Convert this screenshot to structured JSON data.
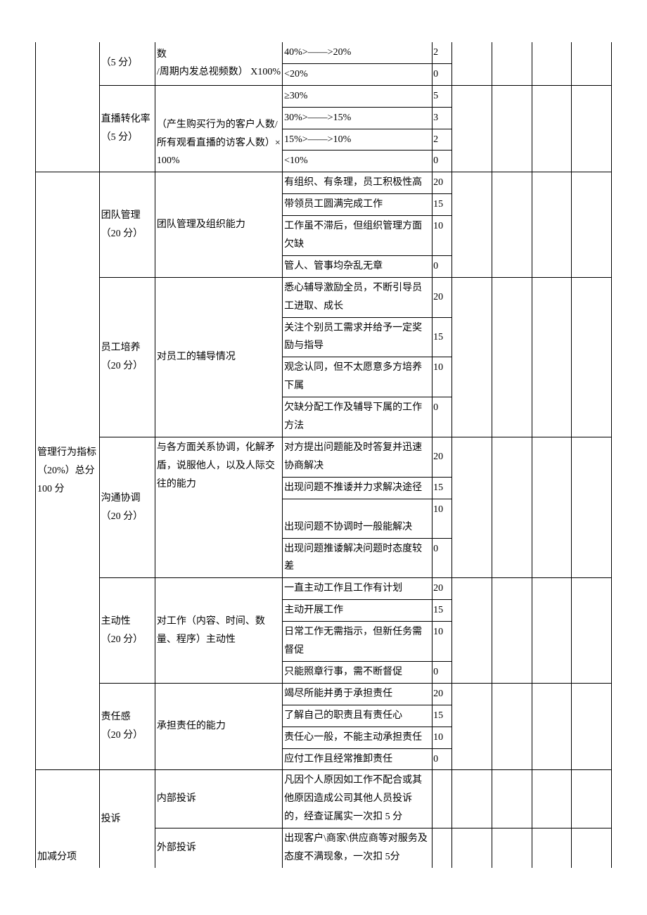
{
  "cols": {
    "c1_width": 80,
    "c2_width": 70,
    "c3_width": 160,
    "c4_width": 180,
    "c5_width": 25,
    "c6_width": 55,
    "c7_width": 55,
    "c8_width": 55,
    "c9_width": 55
  },
  "r1": {
    "metric_label": "（5 分）",
    "formula": "数\n/周期内发总视频数） X100%",
    "level1": "40%>——>20%",
    "score1": "2",
    "level2": "<20%",
    "score2": "0"
  },
  "r2": {
    "metric_label": "直播转化率\n（5 分）",
    "formula": "（产生购买行为的客户人数/所有观看直播的访客人数）×100%",
    "level1": "≥30%",
    "score1": "5",
    "level2": "30%>——>15%",
    "score2": "3",
    "level3": "15%>——>10%",
    "score3": "2",
    "level4": "<10%",
    "score4": "0"
  },
  "section2": {
    "title": "管理行为指标\n（20%）总分 100 分"
  },
  "team": {
    "metric_label": "团队管理\n（20 分）",
    "formula": "团队管理及组织能力",
    "level1": "有组织、有条理，员工积极性高",
    "score1": "20",
    "level2": "带领员工圆满完成工作",
    "score2": "15",
    "level3": "工作虽不滞后，但组织管理方面欠缺",
    "score3": "10",
    "level4": "管人、管事均杂乱无章",
    "score4": "0"
  },
  "train": {
    "metric_label": "员工培养\n（20 分）",
    "formula": "对员工的辅导情况",
    "level1": "悉心辅导激励全员，不断引导员工进取、成长",
    "score1": "20",
    "level2": "关注个别员工需求并给予一定奖励与指导",
    "score2": "15",
    "level3": "观念认同，但不太愿意多方培养下属",
    "score3": "10",
    "level4": "欠缺分配工作及辅导下属的工作方法",
    "score4": "0"
  },
  "comm": {
    "metric_label": "沟通协调\n（20 分）",
    "formula": "与各方面关系协调，化解矛盾，说服他人，以及人际交往的能力",
    "level1": "对方提出问题能及时答复并迅速协商解决",
    "score1": "20",
    "level2": "出现问题不推诿并力求解决途径",
    "score2": "15",
    "level3": "出现问题不协调时一般能解决",
    "score3": "10",
    "level4": "出现问题推诿解决问题时态度较差",
    "score4": "0"
  },
  "init": {
    "metric_label": "主动性\n（20 分）",
    "formula": "对工作（内容、时间、数量、程序）主动性",
    "level1": "一直主动工作且工作有计划",
    "score1": "20",
    "level2": "主动开展工作",
    "score2": "15",
    "level3": "日常工作无需指示，但新任务需督促",
    "score3": "10",
    "level4": "只能照章行事，需不断督促",
    "score4": "0"
  },
  "resp": {
    "metric_label": "责任感\n（20 分）",
    "formula": "承担责任的能力",
    "level1": "竭尽所能并勇于承担责任",
    "score1": "20",
    "level2": "了解自己的职责且有责任心",
    "score2": "15",
    "level3": "责任心一般，不能主动承担责任",
    "score3": "10",
    "level4": "应付工作且经常推卸责任",
    "score4": "0"
  },
  "section3": {
    "title": "加减分项"
  },
  "complaint": {
    "metric_label": "投诉",
    "sub1": "内部投诉",
    "desc1": "凡因个人原因如工作不配合或其他原因造成公司其他人员投诉的，经查证属实一次扣 5 分",
    "sub2": "外部投诉",
    "desc2": "出现客户\\商家\\供应商等对服务及态度不满现象，一次扣 5分"
  }
}
